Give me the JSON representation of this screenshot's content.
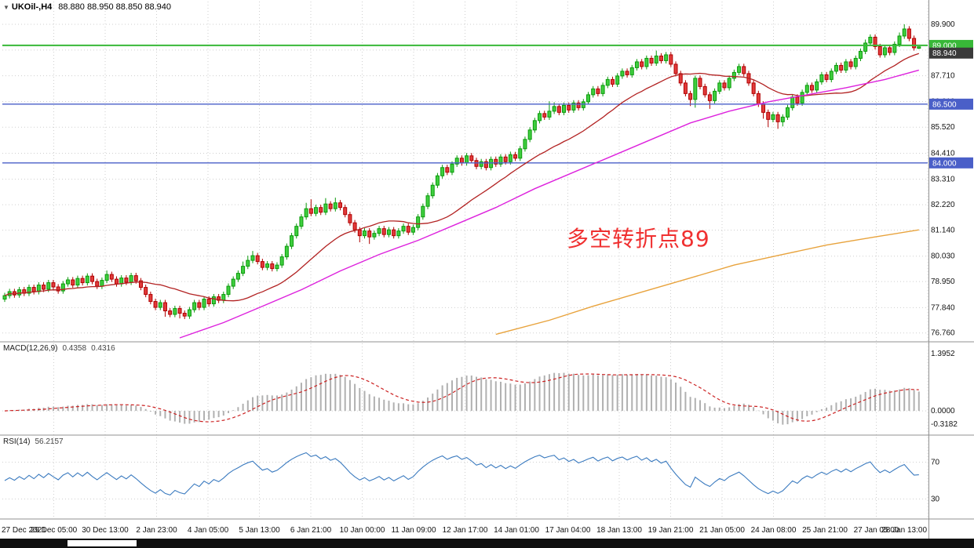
{
  "window": {
    "symbol": "UKOil-,H4",
    "ohlc": "88.880 88.950 88.850 88.940"
  },
  "annotation": {
    "text": "多空转折点89",
    "color": "#f03030"
  },
  "colors": {
    "up_fill": "#3fce3f",
    "up_stroke": "#0a9a0a",
    "down_fill": "#e23b3b",
    "down_stroke": "#b00000",
    "ma_fast": "#b22222",
    "ma_mid": "#dd22dd",
    "ma_slow": "#e8a33d",
    "grid": "#cfcfcf",
    "hline_green": "#38b838",
    "hline_blue": "#4a5fc8",
    "price_box_dark": "#3a3a3a",
    "macd_hist": "#b0b0b0",
    "macd_signal": "#cc2222",
    "rsi_line": "#3a7abf",
    "separator": "#909090",
    "axis_text": "#111111",
    "scrollbar_bg": "#101010",
    "scrollbar_thumb": "#ffffff"
  },
  "main": {
    "price_ticks": [
      "89.900",
      "88.800",
      "87.710",
      "86.610",
      "85.520",
      "84.410",
      "83.310",
      "82.220",
      "81.140",
      "80.030",
      "78.950",
      "77.840",
      "76.760"
    ],
    "price_tick_values": [
      89.9,
      88.8,
      87.71,
      86.61,
      85.52,
      84.41,
      83.31,
      82.22,
      81.14,
      80.03,
      78.95,
      77.84,
      76.76
    ],
    "hlines": [
      {
        "value": 89.0,
        "label": "89.000",
        "type": "green"
      },
      {
        "value": 86.5,
        "label": "86.500",
        "type": "blue"
      },
      {
        "value": 84.0,
        "label": "84.000",
        "type": "blue"
      }
    ],
    "current_price": {
      "value": 88.94,
      "label": "88.940"
    }
  },
  "macd": {
    "label": "MACD(12,26,9)",
    "value_main": "0.4358",
    "value_signal": "0.4316",
    "fast": 12,
    "slow": 26,
    "signal": 9,
    "axis": [
      {
        "label": "1.3952",
        "value": 1.3952
      },
      {
        "label": "0.0000",
        "value": 0
      },
      {
        "label": "-0.3182",
        "value": -0.3182
      }
    ],
    "range": [
      -0.55,
      1.6
    ]
  },
  "rsi": {
    "label": "RSI(14)",
    "value": "56.2157",
    "period": 14,
    "levels": [
      70,
      30
    ],
    "axis_labels": [
      "70",
      "30"
    ],
    "range": [
      10,
      90
    ]
  },
  "time_axis": {
    "labels": [
      "27 Dec 2021",
      "29 Dec 05:00",
      "30 Dec 13:00",
      "2 Jan 23:00",
      "4 Jan 05:00",
      "5 Jan 13:00",
      "6 Jan 21:00",
      "10 Jan 00:00",
      "11 Jan 09:00",
      "12 Jan 17:00",
      "14 Jan 01:00",
      "17 Jan 04:00",
      "18 Jan 13:00",
      "19 Jan 21:00",
      "21 Jan 05:00",
      "24 Jan 08:00",
      "25 Jan 21:00",
      "27 Jan 05:00",
      "28 Jan 13:00"
    ]
  },
  "chart_data": {
    "type": "candlestick",
    "symbol": "UKOil",
    "timeframe": "H4",
    "y_range": [
      76.45,
      90.8
    ],
    "ma_fast_period": 21,
    "candles": [
      [
        78.2,
        78.47,
        78.08,
        78.35
      ],
      [
        78.35,
        78.64,
        78.23,
        78.52
      ],
      [
        78.52,
        78.64,
        78.26,
        78.38
      ],
      [
        78.38,
        78.72,
        78.26,
        78.6
      ],
      [
        78.6,
        78.72,
        78.33,
        78.45
      ],
      [
        78.45,
        78.82,
        78.33,
        78.7
      ],
      [
        78.7,
        78.82,
        78.4,
        78.52
      ],
      [
        78.52,
        78.92,
        78.4,
        78.8
      ],
      [
        78.8,
        78.92,
        78.5,
        78.62
      ],
      [
        78.62,
        79.02,
        78.5,
        78.9
      ],
      [
        78.9,
        79.02,
        78.6,
        78.72
      ],
      [
        78.72,
        78.84,
        78.43,
        78.55
      ],
      [
        78.55,
        78.97,
        78.43,
        78.85
      ],
      [
        78.85,
        79.14,
        78.73,
        79.02
      ],
      [
        79.02,
        79.14,
        78.68,
        78.8
      ],
      [
        78.8,
        79.2,
        78.68,
        79.08
      ],
      [
        79.08,
        79.2,
        78.78,
        78.9
      ],
      [
        78.9,
        79.3,
        78.78,
        79.18
      ],
      [
        79.18,
        79.3,
        78.83,
        78.95
      ],
      [
        78.95,
        79.07,
        78.63,
        78.75
      ],
      [
        78.75,
        79.12,
        78.63,
        79.0
      ],
      [
        79.0,
        79.42,
        78.88,
        79.25
      ],
      [
        79.25,
        79.37,
        78.93,
        79.05
      ],
      [
        79.05,
        79.17,
        78.73,
        78.85
      ],
      [
        78.85,
        79.22,
        78.73,
        79.1
      ],
      [
        79.1,
        79.22,
        78.8,
        78.92
      ],
      [
        78.92,
        79.32,
        78.8,
        79.2
      ],
      [
        79.2,
        79.32,
        78.86,
        78.98
      ],
      [
        78.98,
        79.1,
        78.58,
        78.7
      ],
      [
        78.7,
        78.82,
        78.28,
        78.4
      ],
      [
        78.4,
        78.52,
        77.98,
        78.1
      ],
      [
        78.1,
        78.22,
        77.73,
        77.85
      ],
      [
        77.85,
        78.17,
        77.73,
        78.05
      ],
      [
        78.05,
        78.17,
        77.45,
        77.7
      ],
      [
        77.7,
        77.82,
        77.43,
        77.55
      ],
      [
        77.55,
        77.92,
        77.43,
        77.8
      ],
      [
        77.8,
        77.92,
        77.38,
        77.6
      ],
      [
        77.6,
        77.72,
        77.35,
        77.48
      ],
      [
        77.48,
        77.87,
        77.36,
        77.75
      ],
      [
        77.75,
        78.17,
        77.63,
        78.05
      ],
      [
        78.05,
        78.17,
        77.73,
        77.85
      ],
      [
        77.85,
        78.32,
        77.73,
        78.2
      ],
      [
        78.2,
        78.32,
        77.88,
        78.0
      ],
      [
        78.0,
        78.42,
        77.88,
        78.3
      ],
      [
        78.3,
        78.42,
        78.03,
        78.15
      ],
      [
        78.15,
        78.52,
        78.03,
        78.4
      ],
      [
        78.4,
        78.87,
        78.28,
        78.75
      ],
      [
        78.75,
        79.17,
        78.63,
        79.05
      ],
      [
        79.05,
        79.42,
        78.93,
        79.3
      ],
      [
        79.3,
        79.8,
        79.18,
        79.6
      ],
      [
        79.6,
        80.05,
        79.48,
        79.85
      ],
      [
        79.85,
        80.25,
        79.73,
        80.05
      ],
      [
        80.05,
        80.17,
        79.68,
        79.8
      ],
      [
        79.8,
        79.92,
        79.43,
        79.55
      ],
      [
        79.55,
        79.82,
        79.43,
        79.7
      ],
      [
        79.7,
        79.82,
        79.38,
        79.5
      ],
      [
        79.5,
        79.77,
        79.38,
        79.65
      ],
      [
        79.65,
        80.12,
        79.53,
        80.0
      ],
      [
        80.0,
        80.57,
        79.88,
        80.45
      ],
      [
        80.45,
        81.02,
        80.33,
        80.9
      ],
      [
        80.9,
        81.42,
        80.78,
        81.3
      ],
      [
        81.3,
        81.82,
        81.18,
        81.7
      ],
      [
        81.7,
        82.3,
        81.58,
        82.05
      ],
      [
        82.05,
        82.45,
        81.73,
        81.85
      ],
      [
        81.85,
        82.22,
        81.73,
        82.1
      ],
      [
        82.1,
        82.22,
        81.78,
        81.9
      ],
      [
        81.9,
        82.5,
        81.78,
        82.25
      ],
      [
        82.25,
        82.37,
        81.93,
        82.05
      ],
      [
        82.05,
        82.52,
        81.93,
        82.3
      ],
      [
        82.3,
        82.42,
        81.98,
        82.1
      ],
      [
        82.1,
        82.22,
        81.68,
        81.8
      ],
      [
        81.8,
        81.92,
        81.33,
        81.45
      ],
      [
        81.45,
        81.57,
        81.03,
        81.15
      ],
      [
        81.15,
        81.27,
        80.62,
        80.9
      ],
      [
        80.9,
        81.22,
        80.78,
        81.1
      ],
      [
        81.1,
        81.22,
        80.55,
        80.85
      ],
      [
        80.85,
        81.12,
        80.73,
        81.0
      ],
      [
        81.0,
        81.32,
        80.88,
        81.2
      ],
      [
        81.2,
        81.32,
        80.83,
        80.95
      ],
      [
        80.95,
        81.27,
        80.83,
        81.15
      ],
      [
        81.15,
        81.27,
        80.78,
        80.9
      ],
      [
        80.9,
        81.22,
        80.78,
        81.1
      ],
      [
        81.1,
        81.42,
        80.98,
        81.3
      ],
      [
        81.3,
        81.42,
        80.93,
        81.05
      ],
      [
        81.05,
        81.37,
        80.93,
        81.25
      ],
      [
        81.25,
        81.82,
        81.13,
        81.7
      ],
      [
        81.7,
        82.27,
        81.58,
        82.15
      ],
      [
        82.15,
        82.72,
        82.03,
        82.6
      ],
      [
        82.6,
        83.17,
        82.48,
        83.05
      ],
      [
        83.05,
        83.57,
        82.93,
        83.45
      ],
      [
        83.45,
        83.92,
        83.33,
        83.8
      ],
      [
        83.8,
        83.92,
        83.48,
        83.6
      ],
      [
        83.6,
        84.07,
        83.48,
        83.95
      ],
      [
        83.95,
        84.32,
        83.83,
        84.2
      ],
      [
        84.2,
        84.32,
        83.88,
        84.0
      ],
      [
        84.0,
        84.42,
        83.88,
        84.3
      ],
      [
        84.3,
        84.42,
        83.98,
        84.1
      ],
      [
        84.1,
        84.22,
        83.73,
        83.85
      ],
      [
        83.85,
        84.17,
        83.73,
        84.05
      ],
      [
        84.05,
        84.17,
        83.68,
        83.8
      ],
      [
        83.8,
        84.27,
        83.68,
        84.15
      ],
      [
        84.15,
        84.27,
        83.83,
        83.95
      ],
      [
        83.95,
        84.37,
        83.83,
        84.25
      ],
      [
        84.25,
        84.37,
        83.93,
        84.05
      ],
      [
        84.05,
        84.48,
        83.93,
        84.35
      ],
      [
        84.35,
        84.47,
        84.08,
        84.2
      ],
      [
        84.2,
        84.72,
        84.08,
        84.6
      ],
      [
        84.6,
        85.12,
        84.48,
        85.0
      ],
      [
        85.0,
        85.52,
        84.88,
        85.4
      ],
      [
        85.4,
        85.92,
        85.28,
        85.8
      ],
      [
        85.8,
        86.22,
        85.68,
        86.1
      ],
      [
        86.1,
        86.22,
        85.83,
        85.95
      ],
      [
        85.95,
        86.62,
        85.83,
        86.2
      ],
      [
        86.2,
        86.58,
        86.08,
        86.4
      ],
      [
        86.4,
        86.52,
        86.03,
        86.15
      ],
      [
        86.15,
        86.57,
        86.03,
        86.45
      ],
      [
        86.45,
        86.57,
        86.13,
        86.25
      ],
      [
        86.25,
        86.67,
        86.13,
        86.55
      ],
      [
        86.55,
        86.67,
        86.23,
        86.35
      ],
      [
        86.35,
        86.72,
        86.23,
        86.6
      ],
      [
        86.6,
        87.02,
        86.48,
        86.9
      ],
      [
        86.9,
        87.27,
        86.78,
        87.15
      ],
      [
        87.15,
        87.27,
        86.83,
        86.95
      ],
      [
        86.95,
        87.42,
        86.83,
        87.3
      ],
      [
        87.3,
        87.67,
        87.18,
        87.55
      ],
      [
        87.55,
        87.67,
        87.23,
        87.35
      ],
      [
        87.35,
        87.82,
        87.23,
        87.7
      ],
      [
        87.7,
        88.02,
        87.58,
        87.9
      ],
      [
        87.9,
        88.02,
        87.63,
        87.75
      ],
      [
        87.75,
        88.17,
        87.63,
        88.05
      ],
      [
        88.05,
        88.42,
        87.93,
        88.3
      ],
      [
        88.3,
        88.42,
        87.98,
        88.1
      ],
      [
        88.1,
        88.57,
        87.98,
        88.45
      ],
      [
        88.45,
        88.57,
        88.13,
        88.25
      ],
      [
        88.25,
        88.78,
        88.13,
        88.55
      ],
      [
        88.55,
        88.67,
        88.23,
        88.35
      ],
      [
        88.35,
        88.72,
        88.23,
        88.6
      ],
      [
        88.6,
        88.72,
        88.08,
        88.2
      ],
      [
        88.2,
        88.32,
        87.68,
        87.8
      ],
      [
        87.8,
        87.92,
        87.28,
        87.4
      ],
      [
        87.4,
        87.52,
        86.83,
        86.95
      ],
      [
        86.95,
        87.07,
        86.42,
        86.7
      ],
      [
        86.7,
        87.72,
        86.35,
        87.6
      ],
      [
        87.6,
        87.72,
        87.13,
        87.25
      ],
      [
        87.25,
        87.37,
        86.78,
        86.9
      ],
      [
        86.9,
        87.02,
        86.3,
        86.65
      ],
      [
        86.65,
        87.17,
        86.53,
        87.05
      ],
      [
        87.05,
        87.52,
        86.93,
        87.4
      ],
      [
        87.4,
        87.52,
        87.08,
        87.2
      ],
      [
        87.2,
        87.72,
        87.08,
        87.6
      ],
      [
        87.6,
        87.97,
        87.48,
        87.85
      ],
      [
        87.85,
        88.22,
        87.73,
        88.1
      ],
      [
        88.1,
        88.22,
        87.68,
        87.8
      ],
      [
        87.8,
        87.92,
        87.28,
        87.4
      ],
      [
        87.4,
        87.52,
        86.83,
        86.95
      ],
      [
        86.95,
        87.07,
        86.38,
        86.5
      ],
      [
        86.5,
        86.62,
        85.88,
        86.15
      ],
      [
        86.15,
        86.27,
        85.52,
        85.85
      ],
      [
        85.85,
        86.17,
        85.73,
        86.05
      ],
      [
        86.05,
        86.17,
        85.45,
        85.75
      ],
      [
        85.75,
        86.07,
        85.55,
        85.95
      ],
      [
        85.95,
        86.47,
        85.83,
        86.35
      ],
      [
        86.35,
        86.92,
        86.23,
        86.8
      ],
      [
        86.8,
        86.92,
        86.43,
        86.55
      ],
      [
        86.55,
        87.12,
        86.43,
        87.0
      ],
      [
        87.0,
        87.42,
        86.88,
        87.3
      ],
      [
        87.3,
        87.42,
        86.98,
        87.1
      ],
      [
        87.1,
        87.57,
        86.98,
        87.45
      ],
      [
        87.45,
        87.87,
        87.33,
        87.75
      ],
      [
        87.75,
        87.87,
        87.43,
        87.55
      ],
      [
        87.55,
        88.02,
        87.43,
        87.9
      ],
      [
        87.9,
        88.27,
        87.78,
        88.15
      ],
      [
        88.15,
        88.27,
        87.83,
        87.95
      ],
      [
        87.95,
        88.42,
        87.83,
        88.3
      ],
      [
        88.3,
        88.42,
        87.98,
        88.1
      ],
      [
        88.1,
        88.57,
        87.98,
        88.45
      ],
      [
        88.45,
        88.87,
        88.33,
        88.75
      ],
      [
        88.75,
        89.25,
        88.63,
        89.1
      ],
      [
        89.1,
        89.47,
        88.98,
        89.35
      ],
      [
        89.35,
        89.47,
        88.83,
        88.95
      ],
      [
        88.95,
        89.07,
        88.48,
        88.6
      ],
      [
        88.6,
        89.02,
        88.48,
        88.9
      ],
      [
        88.9,
        89.02,
        88.58,
        88.7
      ],
      [
        88.7,
        89.17,
        88.58,
        89.05
      ],
      [
        89.05,
        89.55,
        88.93,
        89.4
      ],
      [
        89.4,
        89.9,
        89.28,
        89.7
      ],
      [
        89.7,
        89.82,
        89.18,
        89.3
      ],
      [
        89.3,
        89.42,
        88.78,
        88.9
      ],
      [
        88.88,
        88.95,
        88.85,
        88.94
      ]
    ],
    "ma_mid_points": [
      [
        36,
        76.55
      ],
      [
        45,
        77.2
      ],
      [
        53,
        77.9
      ],
      [
        61,
        78.6
      ],
      [
        69,
        79.4
      ],
      [
        77,
        80.1
      ],
      [
        85,
        80.7
      ],
      [
        93,
        81.4
      ],
      [
        101,
        82.1
      ],
      [
        109,
        82.9
      ],
      [
        117,
        83.6
      ],
      [
        125,
        84.3
      ],
      [
        133,
        85.0
      ],
      [
        141,
        85.7
      ],
      [
        149,
        86.2
      ],
      [
        157,
        86.6
      ],
      [
        165,
        86.9
      ],
      [
        173,
        87.2
      ],
      [
        181,
        87.55
      ],
      [
        188,
        87.95
      ]
    ],
    "ma_slow_points": [
      [
        101,
        76.7
      ],
      [
        112,
        77.3
      ],
      [
        121,
        77.9
      ],
      [
        131,
        78.5
      ],
      [
        141,
        79.1
      ],
      [
        150,
        79.65
      ],
      [
        160,
        80.1
      ],
      [
        169,
        80.5
      ],
      [
        179,
        80.85
      ],
      [
        188,
        81.15
      ]
    ]
  }
}
